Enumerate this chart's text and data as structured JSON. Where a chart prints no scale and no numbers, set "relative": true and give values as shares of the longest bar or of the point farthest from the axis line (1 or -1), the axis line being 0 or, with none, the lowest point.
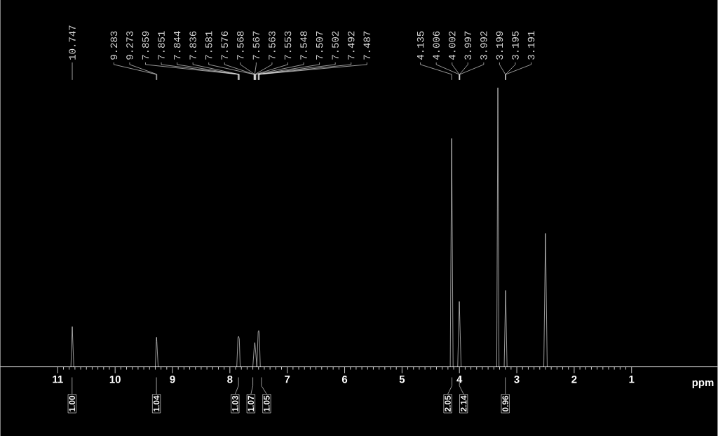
{
  "chart_data": {
    "type": "line",
    "xlabel": "ppm",
    "relative": true,
    "xlim": [
      12,
      -0.5
    ],
    "xticks": [
      11,
      10,
      9,
      8,
      7,
      6,
      5,
      4,
      3,
      2,
      1
    ],
    "series": [
      {
        "color": "#ffffff",
        "x": [
          12,
          10.77,
          10.747,
          10.72,
          9.3,
          9.283,
          9.278,
          9.273,
          9.25,
          7.88,
          7.859,
          7.848,
          7.836,
          7.82,
          7.6,
          7.576,
          7.565,
          7.553,
          7.53,
          7.507,
          7.497,
          7.487,
          7.47,
          4.16,
          4.135,
          4.11,
          4.03,
          4.002,
          3.97,
          3.35,
          3.33,
          3.31,
          3.22,
          3.195,
          3.17,
          2.53,
          2.5,
          2.47,
          -0.5
        ],
        "values": [
          0,
          0,
          0.144,
          0,
          0,
          0.09,
          0.106,
          0.09,
          0,
          0,
          0.105,
          0.109,
          0.1,
          0,
          0,
          0.07,
          0.087,
          0.06,
          0,
          0.125,
          0.13,
          0.12,
          0,
          0,
          0.818,
          0,
          0,
          0.234,
          0,
          0,
          1.0,
          0,
          0,
          0.274,
          0,
          0,
          0.478,
          0,
          0
        ]
      }
    ],
    "annotations": [
      "10.747",
      "9.283",
      "9.273",
      "7.859",
      "7.851",
      "7.844",
      "7.836",
      "7.581",
      "7.576",
      "7.568",
      "7.567",
      "7.563",
      "7.553",
      "7.548",
      "7.507",
      "7.502",
      "7.492",
      "7.487",
      "4.135",
      "4.006",
      "4.002",
      "3.997",
      "3.992",
      "3.199",
      "3.195",
      "3.191",
      {
        "text": "1.00",
        "x": 10.75
      },
      {
        "text": "1.04",
        "x": 9.28
      },
      {
        "text": "1.03",
        "x": 7.85
      },
      {
        "text": "1.07",
        "x": 7.6
      },
      {
        "text": "1.05",
        "x": 7.45
      },
      {
        "text": "2.05",
        "x": 4.13
      },
      {
        "text": "2.14",
        "x": 4.0
      },
      {
        "text": "0.96",
        "x": 3.2
      }
    ]
  }
}
